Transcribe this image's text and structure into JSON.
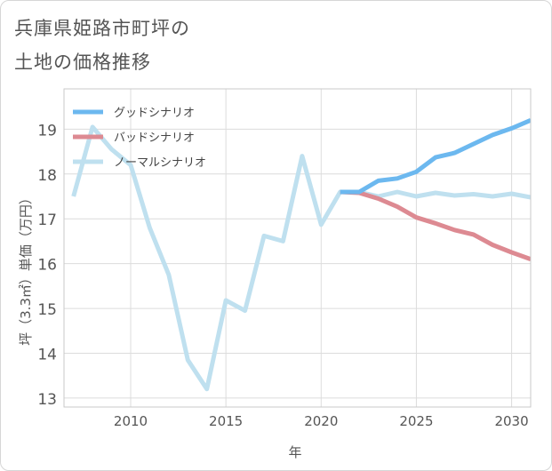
{
  "title_lines": [
    "兵庫県姫路市町坪の",
    "土地の価格推移"
  ],
  "chart_data": {
    "type": "line",
    "title": "兵庫県姫路市町坪の土地の価格推移",
    "xlabel": "年",
    "ylabel": "坪（3.3㎡）単価（万円）",
    "xlim": [
      2006.5,
      2031
    ],
    "ylim": [
      12.8,
      19.9
    ],
    "x_ticks": [
      2010,
      2015,
      2020,
      2025,
      2030
    ],
    "y_ticks": [
      13,
      14,
      15,
      16,
      17,
      18,
      19
    ],
    "grid": true,
    "legend_position": "top-left",
    "series": [
      {
        "name": "グッドシナリオ",
        "color": "#6cb8ef",
        "x": [
          2021,
          2022,
          2023,
          2024,
          2025,
          2026,
          2027,
          2028,
          2029,
          2030,
          2031
        ],
        "y": [
          17.6,
          17.6,
          17.85,
          17.9,
          18.05,
          18.37,
          18.47,
          18.67,
          18.87,
          19.02,
          19.2
        ]
      },
      {
        "name": "バッドシナリオ",
        "color": "#dd8a92",
        "x": [
          2021,
          2022,
          2023,
          2024,
          2025,
          2026,
          2027,
          2028,
          2029,
          2030,
          2031
        ],
        "y": [
          17.6,
          17.58,
          17.45,
          17.27,
          17.03,
          16.9,
          16.75,
          16.65,
          16.42,
          16.25,
          16.1
        ]
      },
      {
        "name": "ノーマルシナリオ",
        "color": "#bfe0ef",
        "x": [
          2007,
          2008,
          2009,
          2010,
          2011,
          2012,
          2013,
          2014,
          2015,
          2016,
          2017,
          2018,
          2019,
          2020,
          2021,
          2022,
          2023,
          2024,
          2025,
          2026,
          2027,
          2028,
          2029,
          2030,
          2031
        ],
        "y": [
          17.5,
          19.05,
          18.55,
          18.2,
          16.8,
          15.75,
          13.85,
          13.2,
          15.18,
          14.95,
          16.62,
          16.5,
          18.4,
          16.87,
          17.6,
          17.6,
          17.5,
          17.6,
          17.5,
          17.58,
          17.52,
          17.55,
          17.5,
          17.56,
          17.48
        ]
      }
    ]
  }
}
